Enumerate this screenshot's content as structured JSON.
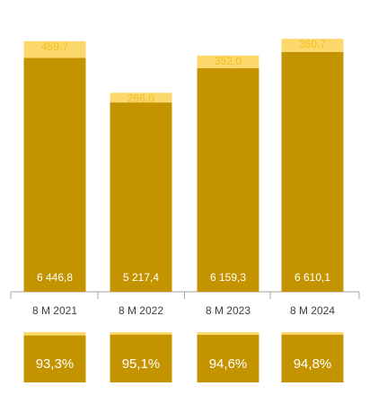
{
  "chart_data": {
    "type": "bar",
    "stacked": true,
    "categories": [
      "8 M 2021",
      "8 M 2022",
      "8 M 2023",
      "8 M 2024"
    ],
    "series": [
      {
        "values": [
          6446.8,
          5217.4,
          6159.3,
          6610.1
        ],
        "labels": [
          "6 446,8",
          "5 217,4",
          "6 159,3",
          "6 610,1"
        ],
        "color": "#c49400"
      },
      {
        "values": [
          459.7,
          266.0,
          352.0,
          360.7
        ],
        "labels": [
          "459,7",
          "266,0",
          "352,0",
          "360,7"
        ],
        "color": "#fcd86c"
      }
    ],
    "share_labels": [
      "93,3%",
      "95,1%",
      "94,6%",
      "94,8%"
    ],
    "share_values": [
      93.3,
      95.1,
      94.6,
      94.8
    ],
    "ylim": [
      0,
      7100
    ],
    "grid": false,
    "colors": {
      "base": "#c49400",
      "top": "#fcd86c",
      "top_label": "#f0c020",
      "axis": "#a6a6a6",
      "text": "#404040"
    }
  }
}
